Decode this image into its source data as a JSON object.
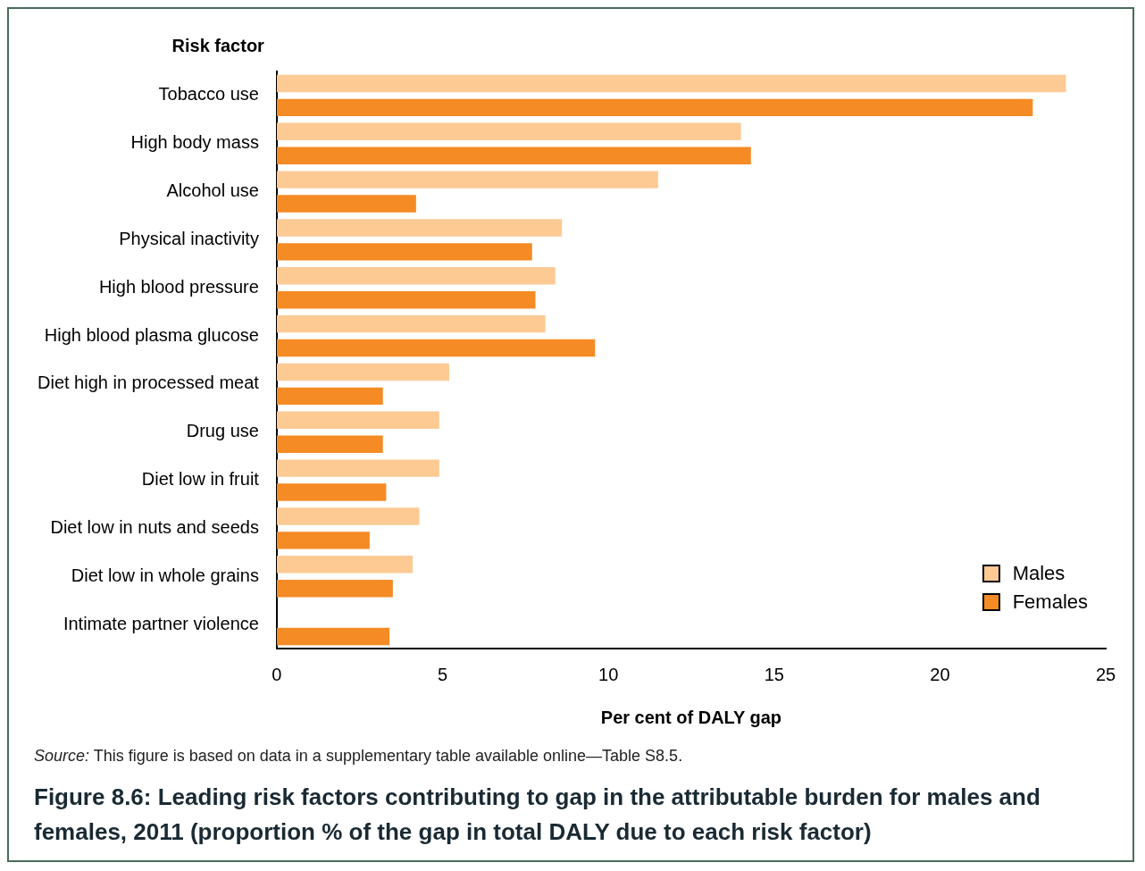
{
  "chart_data": {
    "type": "bar",
    "orientation": "horizontal",
    "title": "Figure 8.6: Leading risk factors contributing to gap in the attributable burden for males and females, 2011 (proportion % of the gap in total DALY due to each risk factor)",
    "ylabel": "Risk factor",
    "xlabel": "Per cent of DALY gap",
    "categories": [
      "Tobacco use",
      "High body mass",
      "Alcohol use",
      "Physical inactivity",
      "High blood pressure",
      "High blood plasma glucose",
      "Diet high in processed meat",
      "Drug use",
      "Diet low in fruit",
      "Diet low in nuts and seeds",
      "Diet low in whole grains",
      "Intimate partner violence"
    ],
    "series": [
      {
        "name": "Males",
        "color": "#fdca94",
        "values": [
          23.8,
          14.0,
          11.5,
          8.6,
          8.4,
          8.1,
          5.2,
          4.9,
          4.9,
          4.3,
          4.1,
          null
        ]
      },
      {
        "name": "Females",
        "color": "#f58b24",
        "values": [
          22.8,
          14.3,
          4.2,
          7.7,
          7.8,
          9.6,
          3.2,
          3.2,
          3.3,
          2.8,
          3.5,
          3.4
        ]
      }
    ],
    "xlim": [
      0,
      25
    ],
    "xticks": [
      0,
      5,
      10,
      15,
      20,
      25
    ],
    "grid": false,
    "legend": "bottom right",
    "annotations": [
      "Source: This figure is based on data in a supplementary table available online—Table S8.5."
    ]
  }
}
